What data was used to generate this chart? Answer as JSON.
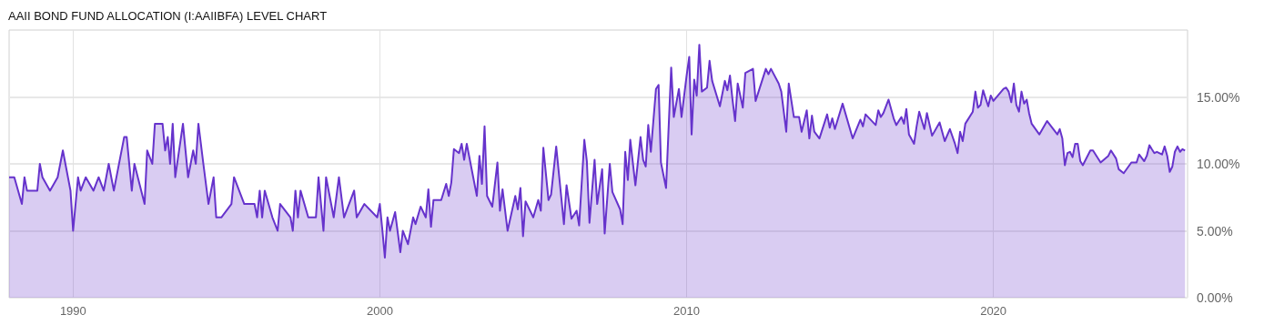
{
  "chart_data": {
    "type": "area",
    "title": "AAII BOND FUND ALLOCATION (I:AAIIBFA) LEVEL CHART",
    "x": [
      "1987-12",
      "1988-02",
      "1988-05",
      "1988-06",
      "1988-07",
      "1988-11",
      "1988-12",
      "1989-01",
      "1989-04",
      "1989-07",
      "1989-09",
      "1989-12",
      "1990-01",
      "1990-03",
      "1990-04",
      "1990-06",
      "1990-09",
      "1990-11",
      "1991-01",
      "1991-03",
      "1991-05",
      "1991-09",
      "1991-10",
      "1991-12",
      "1992-01",
      "1992-05",
      "1992-06",
      "1992-08",
      "1992-09",
      "1992-12",
      "1993-01",
      "1993-02",
      "1993-03",
      "1993-04",
      "1993-05",
      "1993-08",
      "1993-10",
      "1993-12",
      "1994-01",
      "1994-02",
      "1994-04",
      "1994-06",
      "1994-08",
      "1994-09",
      "1994-11",
      "1995-03",
      "1995-04",
      "1995-08",
      "1995-12",
      "1996-01",
      "1996-02",
      "1996-03",
      "1996-04",
      "1996-07",
      "1996-09",
      "1996-10",
      "1997-02",
      "1997-03",
      "1997-04",
      "1997-05",
      "1997-06",
      "1997-09",
      "1997-12",
      "1998-01",
      "1998-03",
      "1998-04",
      "1998-07",
      "1998-09",
      "1998-11",
      "1999-03",
      "1999-04",
      "1999-07",
      "1999-12",
      "2000-01",
      "2000-02",
      "2000-03",
      "2000-04",
      "2000-05",
      "2000-07",
      "2000-09",
      "2000-10",
      "2000-12",
      "2001-02",
      "2001-03",
      "2001-05",
      "2001-07",
      "2001-08",
      "2001-09",
      "2001-10",
      "2002-01",
      "2002-03",
      "2002-04",
      "2002-05",
      "2002-06",
      "2002-08",
      "2002-09",
      "2002-10",
      "2002-11",
      "2003-03",
      "2003-04",
      "2003-05",
      "2003-06",
      "2003-07",
      "2003-09",
      "2003-11",
      "2003-12",
      "2004-01",
      "2004-03",
      "2004-06",
      "2004-07",
      "2004-08",
      "2004-09",
      "2004-10",
      "2005-01",
      "2005-03",
      "2005-04",
      "2005-05",
      "2005-07",
      "2005-08",
      "2005-10",
      "2006-01",
      "2006-02",
      "2006-04",
      "2006-06",
      "2006-07",
      "2006-09",
      "2006-10",
      "2006-11",
      "2007-01",
      "2007-02",
      "2007-04",
      "2007-05",
      "2007-07",
      "2007-08",
      "2007-11",
      "2007-12",
      "2008-01",
      "2008-02",
      "2008-03",
      "2008-05",
      "2008-07",
      "2008-08",
      "2008-09",
      "2008-10",
      "2008-11",
      "2009-01",
      "2009-02",
      "2009-03",
      "2009-05",
      "2009-07",
      "2009-08",
      "2009-10",
      "2009-11",
      "2010-01",
      "2010-02",
      "2010-03",
      "2010-04",
      "2010-05",
      "2010-06",
      "2010-07",
      "2010-09",
      "2010-10",
      "2010-11",
      "2011-02",
      "2011-04",
      "2011-05",
      "2011-06",
      "2011-07",
      "2011-08",
      "2011-09",
      "2011-11",
      "2011-12",
      "2012-03",
      "2012-04",
      "2012-08",
      "2012-09",
      "2012-10",
      "2013-01",
      "2013-02",
      "2013-04",
      "2013-05",
      "2013-07",
      "2013-09",
      "2013-10",
      "2013-12",
      "2014-01",
      "2014-02",
      "2014-03",
      "2014-05",
      "2014-08",
      "2014-09",
      "2014-10",
      "2014-11",
      "2015-02",
      "2015-06",
      "2015-09",
      "2015-10",
      "2015-11",
      "2016-03",
      "2016-04",
      "2016-05",
      "2016-06",
      "2016-08",
      "2016-10",
      "2016-11",
      "2017-01",
      "2017-02",
      "2017-03",
      "2017-04",
      "2017-06",
      "2017-07",
      "2017-08",
      "2017-10",
      "2017-11",
      "2018-01",
      "2018-04",
      "2018-06",
      "2018-08",
      "2018-10",
      "2018-11",
      "2018-12",
      "2019-01",
      "2019-02",
      "2019-05",
      "2019-06",
      "2019-07",
      "2019-08",
      "2019-09",
      "2019-10",
      "2019-11",
      "2019-12",
      "2020-01",
      "2020-05",
      "2020-06",
      "2020-07",
      "2020-08",
      "2020-09",
      "2020-10",
      "2020-11",
      "2020-12",
      "2021-01",
      "2021-02",
      "2021-03",
      "2021-04",
      "2021-07",
      "2021-10",
      "2022-02",
      "2022-03",
      "2022-04",
      "2022-05",
      "2022-06",
      "2022-07",
      "2022-08",
      "2022-09",
      "2022-10",
      "2022-11",
      "2022-12",
      "2023-03",
      "2023-04",
      "2023-07",
      "2023-10",
      "2023-11",
      "2024-01",
      "2024-02",
      "2024-04",
      "2024-07",
      "2024-09",
      "2024-10",
      "2024-12",
      "2025-01",
      "2025-02",
      "2025-03",
      "2025-04",
      "2025-05",
      "2025-07",
      "2025-08",
      "2025-09",
      "2025-10",
      "2025-11",
      "2025-12",
      "2026-01",
      "2026-02",
      "2026-03",
      "2026-04"
    ],
    "series": [
      {
        "color": "#6633cc",
        "values": [
          9,
          9,
          7,
          9,
          8,
          8,
          10,
          9,
          8,
          9,
          11,
          8,
          5,
          9,
          8,
          9,
          8,
          9,
          8,
          10,
          8,
          12,
          12,
          8,
          10,
          7,
          11,
          10,
          13,
          13,
          11,
          12,
          10,
          13,
          9,
          13,
          9,
          11,
          10,
          13,
          10,
          7,
          9,
          6,
          6,
          7,
          9,
          7,
          7,
          6,
          8,
          6,
          8,
          6,
          5,
          7,
          6,
          5,
          8,
          6,
          8,
          6,
          6,
          9,
          5,
          9,
          6,
          9,
          6,
          8,
          6,
          7,
          6,
          7,
          5,
          3,
          6,
          5,
          6.4,
          3.4,
          5,
          4,
          6,
          5.5,
          6.8,
          6,
          8.1,
          5.3,
          7.3,
          7.3,
          8.5,
          7.6,
          8.6,
          11.1,
          10.8,
          11.5,
          10.3,
          11.5,
          7.6,
          10.6,
          8.5,
          12.8,
          7.6,
          6.8,
          10.1,
          6.5,
          8.1,
          5,
          7.6,
          6.6,
          8.2,
          4.6,
          7.2,
          6,
          7.3,
          6.5,
          11.2,
          7.3,
          7.7,
          11.3,
          5.5,
          8.4,
          5.9,
          6.5,
          5.4,
          11.8,
          10.2,
          5.6,
          10.3,
          7,
          9.6,
          4.8,
          10,
          7.9,
          6.6,
          5.5,
          10.9,
          8.8,
          11.8,
          8.4,
          12,
          10.3,
          9.8,
          12.9,
          10.9,
          15.6,
          15.9,
          10.1,
          8.2,
          17.2,
          13.5,
          15.6,
          13.5,
          16.6,
          18,
          12.2,
          16.3,
          15.1,
          18.9,
          15.4,
          15.7,
          17.7,
          16.2,
          14.3,
          16.2,
          15.5,
          16.6,
          14.8,
          13.2,
          16,
          14.2,
          16.8,
          17.1,
          14.7,
          17.1,
          16.7,
          17.1,
          16,
          15.4,
          12.4,
          16,
          13.5,
          13.5,
          12.4,
          14,
          11.9,
          13.6,
          12.4,
          11.9,
          13.7,
          12.7,
          13.4,
          12.6,
          14.5,
          11.9,
          13.3,
          12.8,
          13.7,
          12.9,
          14,
          13.5,
          13.8,
          14.8,
          13.4,
          12.9,
          13.5,
          13,
          14.1,
          12.2,
          11.5,
          12.8,
          13.9,
          12.6,
          13.8,
          12.1,
          13.1,
          11.7,
          12.6,
          11.5,
          10.8,
          12.4,
          11.7,
          13,
          13.9,
          15.4,
          14.2,
          14.4,
          15.5,
          14.9,
          14.3,
          15.1,
          14.7,
          15.6,
          15.7,
          15.4,
          14.6,
          16,
          14.4,
          13.9,
          15.4,
          14.5,
          14.8,
          13.8,
          13,
          12.2,
          13.2,
          12.2,
          12.6,
          11.9,
          9.9,
          10.8,
          10.9,
          10.5,
          11.5,
          11.5,
          10.2,
          9.9,
          11,
          11,
          10.1,
          10.6,
          11,
          10.4,
          9.6,
          9.3,
          10.1,
          10.1,
          10.7,
          10.2,
          10.6,
          11.4,
          11.1,
          10.8,
          10.9,
          10.7,
          11.3,
          10.6,
          9.4,
          9.8,
          10.9,
          11.3,
          10.9,
          11.1,
          11
        ]
      }
    ],
    "xlim": [
      "1987-12",
      "2026-05"
    ],
    "xticks": [
      "1990",
      "2000",
      "2010",
      "2020"
    ],
    "ylim": [
      0,
      20
    ],
    "yticks": [
      {
        "value": 0,
        "label": "0.00%"
      },
      {
        "value": 5,
        "label": "5.00%"
      },
      {
        "value": 10,
        "label": "10.00%"
      },
      {
        "value": 15,
        "label": "15.00%"
      }
    ],
    "grid": true
  }
}
